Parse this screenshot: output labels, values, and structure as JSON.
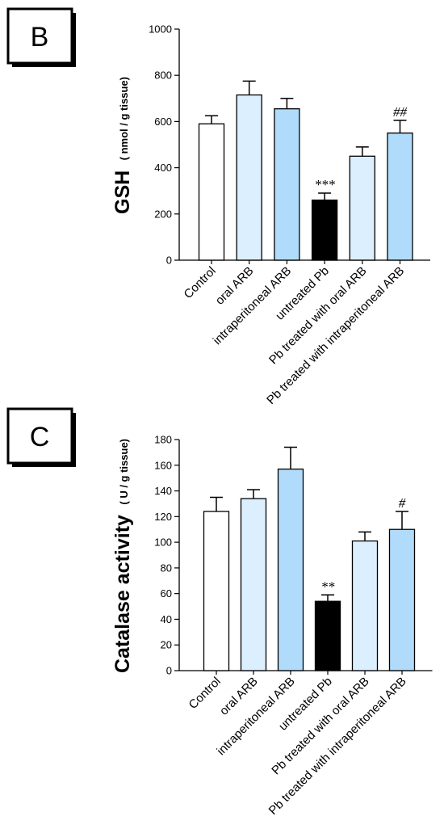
{
  "colors": {
    "white": "#ffffff",
    "light_blue": "#dcefff",
    "medium_blue": "#b0dbfb",
    "black": "#000000"
  },
  "chart_data": [
    {
      "type": "bar",
      "panel_label": "B",
      "ylabel": "GSH",
      "ylabel_unit": "( nmol / g tissue)",
      "ylim": [
        0,
        1000
      ],
      "yticks": [
        0,
        200,
        400,
        600,
        800,
        1000
      ],
      "categories": [
        "Control",
        "oral ARB",
        "intraperitoneal ARB",
        "untreated Pb",
        "Pb treated with oral ARB",
        "Pb treated with intraperitoneal ARB"
      ],
      "values": [
        590,
        715,
        655,
        260,
        450,
        550
      ],
      "errors": [
        35,
        60,
        45,
        30,
        40,
        55
      ],
      "bar_colors": [
        "white",
        "light_blue",
        "medium_blue",
        "black",
        "light_blue",
        "medium_blue"
      ],
      "significance": [
        "",
        "",
        "",
        "***",
        "",
        "##"
      ],
      "grid": false
    },
    {
      "type": "bar",
      "panel_label": "C",
      "ylabel": "Catalase activity",
      "ylabel_unit": "( U / g tissue)",
      "ylim": [
        0,
        180
      ],
      "yticks": [
        0,
        20,
        40,
        60,
        80,
        100,
        120,
        140,
        160,
        180
      ],
      "categories": [
        "Control",
        "oral ARB",
        "intraperitoneal ARB",
        "untreated Pb",
        "Pb treated with oral ARB",
        "Pb treated with intraperitoneal ARB"
      ],
      "values": [
        124,
        134,
        157,
        54,
        101,
        110
      ],
      "errors": [
        11,
        7,
        17,
        5,
        7,
        14
      ],
      "bar_colors": [
        "white",
        "light_blue",
        "medium_blue",
        "black",
        "light_blue",
        "medium_blue"
      ],
      "significance": [
        "",
        "",
        "",
        "**",
        "",
        "#"
      ],
      "grid": false
    }
  ]
}
